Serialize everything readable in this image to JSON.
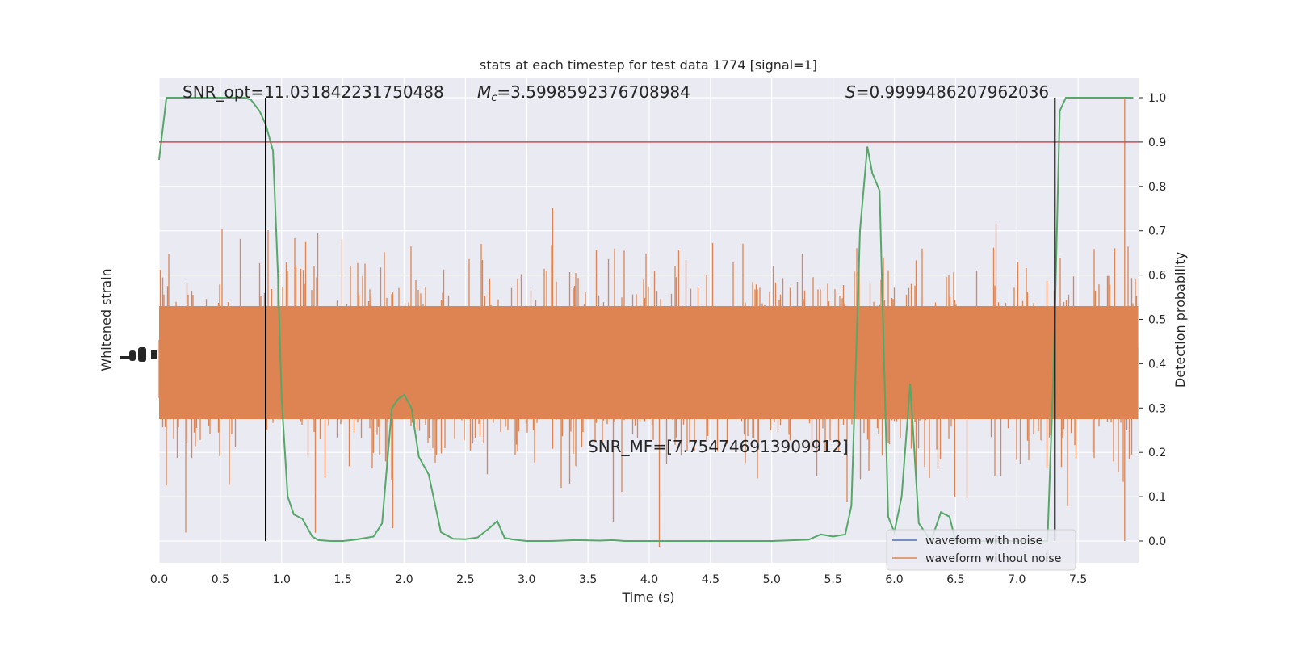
{
  "chart_data": {
    "type": "line",
    "title": "stats at each timestep for test data 1774 [signal=1]",
    "xlabel": "Time (s)",
    "ylabel_left": "Whitened strain",
    "ylabel_right": "Detection probability",
    "xlim": [
      0,
      8
    ],
    "ylim_right": [
      -0.05,
      1.05
    ],
    "x_ticks": [
      "0.0",
      "0.5",
      "1.0",
      "1.5",
      "2.0",
      "2.5",
      "3.0",
      "3.5",
      "4.0",
      "4.5",
      "5.0",
      "5.5",
      "6.0",
      "6.5",
      "7.0",
      "7.5"
    ],
    "x_tick_values": [
      0,
      0.5,
      1,
      1.5,
      2,
      2.5,
      3,
      3.5,
      4,
      4.5,
      5,
      5.5,
      6,
      6.5,
      7,
      7.5
    ],
    "y_right_ticks": [
      "0.0",
      "0.1",
      "0.2",
      "0.3",
      "0.4",
      "0.5",
      "0.6",
      "0.7",
      "0.8",
      "0.9",
      "1.0"
    ],
    "y_right_tick_values": [
      0,
      0.1,
      0.2,
      0.3,
      0.4,
      0.5,
      0.6,
      0.7,
      0.8,
      0.9,
      1.0
    ],
    "threshold": 0.9,
    "vlines": [
      0.87,
      7.31
    ],
    "grid": true,
    "legend_position": "bottom-right",
    "annotations": {
      "snr_opt": "SNR_opt=11.031842231750488",
      "mc_symbol": "M",
      "mc_sub": "c",
      "mc_value": "=3.5998592376708984",
      "s_symbol": "S",
      "s_value": "=0.9999486207962036",
      "snr_mf": "SNR_MF=[7.754746913909912]"
    },
    "series": [
      {
        "name": "waveform with noise",
        "color": "#4c72b0"
      },
      {
        "name": "waveform without noise",
        "color": "#dd8452"
      }
    ],
    "probability": {
      "color": "#55a868",
      "x": [
        0.0,
        0.06,
        0.12,
        0.2,
        0.3,
        0.4,
        0.5,
        0.6,
        0.7,
        0.75,
        0.82,
        0.87,
        0.93,
        0.97,
        1.0,
        1.05,
        1.1,
        1.17,
        1.25,
        1.3,
        1.4,
        1.5,
        1.6,
        1.75,
        1.82,
        1.9,
        1.95,
        2.0,
        2.06,
        2.12,
        2.2,
        2.3,
        2.4,
        2.5,
        2.6,
        2.7,
        2.76,
        2.82,
        2.9,
        3.0,
        3.2,
        3.4,
        3.6,
        3.7,
        3.8,
        4.0,
        4.5,
        5.0,
        5.3,
        5.4,
        5.5,
        5.6,
        5.65,
        5.72,
        5.78,
        5.82,
        5.88,
        5.95,
        6.0,
        6.06,
        6.13,
        6.2,
        6.3,
        6.38,
        6.45,
        6.5,
        6.8,
        7.0,
        7.2,
        7.25,
        7.3,
        7.35,
        7.4,
        7.47,
        7.55,
        7.65,
        7.8,
        7.95
      ],
      "y": [
        0.86,
        1.0,
        1.0,
        1.0,
        1.0,
        1.0,
        1.0,
        1.0,
        1.0,
        0.995,
        0.97,
        0.94,
        0.88,
        0.6,
        0.32,
        0.1,
        0.06,
        0.05,
        0.01,
        0.002,
        0.0,
        0.0,
        0.003,
        0.01,
        0.04,
        0.3,
        0.32,
        0.33,
        0.3,
        0.19,
        0.15,
        0.02,
        0.005,
        0.004,
        0.008,
        0.03,
        0.045,
        0.007,
        0.003,
        0.0,
        0.0,
        0.002,
        0.001,
        0.002,
        0.0,
        0.0,
        0.0,
        0.0,
        0.003,
        0.015,
        0.01,
        0.015,
        0.08,
        0.7,
        0.89,
        0.83,
        0.79,
        0.055,
        0.02,
        0.1,
        0.355,
        0.04,
        0.0,
        0.065,
        0.055,
        0.0,
        0.0,
        0.0,
        0.0,
        0.0,
        0.39,
        0.97,
        1.0,
        1.0,
        1.0,
        1.0,
        1.0,
        1.0
      ]
    }
  }
}
